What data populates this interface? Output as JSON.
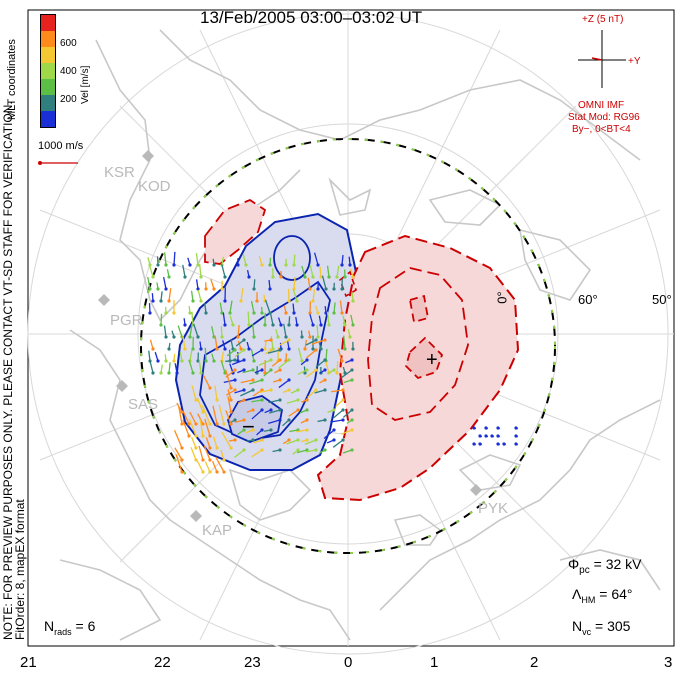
{
  "title": "13/Feb/2005 03:00–03:02 UT",
  "notes": {
    "side": "NOTE: FOR PREVIEW PURPOSES ONLY. PLEASE CONTACT VT-SD STAFF FOR VERIFICATION.",
    "fit": "FitOrder: 8, mapEX format",
    "coords": "MLT coordinates"
  },
  "colorbar": {
    "label": "Vel [m/s]",
    "ticks": [
      "600",
      "400",
      "200"
    ],
    "colors": [
      "#e8231f",
      "#ff8a1c",
      "#f4c832",
      "#9fd94a",
      "#5cbf45",
      "#2f7f7f",
      "#1a2fd6"
    ]
  },
  "velocity_scale": {
    "label": "1000 m/s",
    "color": "#cc0000"
  },
  "imf": {
    "z_label": "+Z (5 nT)",
    "y_label": "+Y",
    "source": "OMNI IMF",
    "model": "Stat Mod: RG96",
    "condition": "By−, 0<BT<4",
    "color": "#cc0000"
  },
  "stats": {
    "phi_pc": "32 kV",
    "lambda_hm": "64°",
    "n_vc": "305",
    "n_rads": "6"
  },
  "stats_symbols": {
    "phi": "Φ",
    "phi_sub": "pc",
    "lambda": "Λ",
    "lambda_sub": "HM",
    "nvc": "N",
    "nvc_sub": "vc",
    "nrads": "N",
    "nrads_sub": "rads"
  },
  "mlt_axis": [
    "21",
    "22",
    "23",
    "0",
    "1",
    "2",
    "3"
  ],
  "latitude_labels": [
    "60°",
    "50°",
    "0°"
  ],
  "stations": [
    "KSR",
    "KOD",
    "PGR",
    "SAS",
    "KAP",
    "PYK"
  ],
  "extrema_markers": {
    "max": "+",
    "min": "−"
  },
  "contour_colors": {
    "positive": "#cc0000",
    "negative": "#0a24b0",
    "positive_fill": "#f6d8d8",
    "negative_fill": "#d9dbef"
  },
  "map_colors": {
    "coast": "#c8c8c8",
    "grid": "#d8d8d8",
    "boundary": "#000000"
  }
}
